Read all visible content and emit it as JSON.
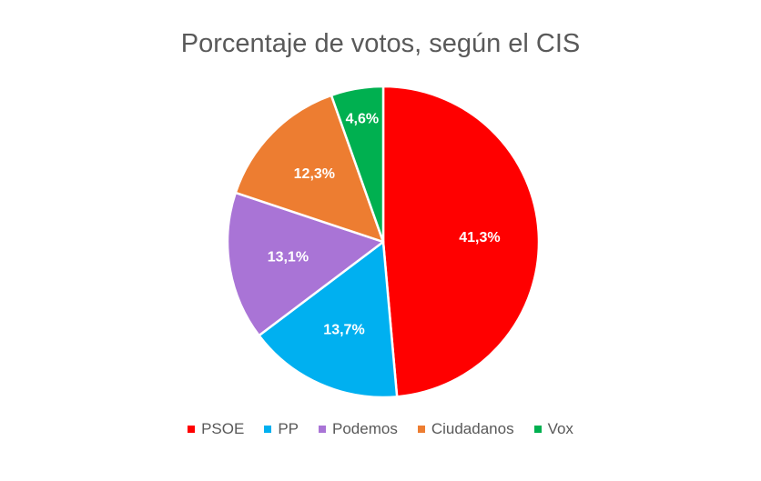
{
  "chart_data": {
    "type": "pie",
    "title": "Porcentaje de votos, según el CIS",
    "slices": [
      {
        "name": "PSOE",
        "value": 41.3,
        "label": "41,3%",
        "color": "#ff0000"
      },
      {
        "name": "PP",
        "value": 13.7,
        "label": "13,7%",
        "color": "#00b0f0"
      },
      {
        "name": "Podemos",
        "value": 13.1,
        "label": "13,1%",
        "color": "#a974d6"
      },
      {
        "name": "Ciudadanos",
        "value": 12.3,
        "label": "12,3%",
        "color": "#ed7d31"
      },
      {
        "name": "Vox",
        "value": 4.6,
        "label": "4,6%",
        "color": "#00b050"
      }
    ],
    "legend_position": "bottom"
  }
}
